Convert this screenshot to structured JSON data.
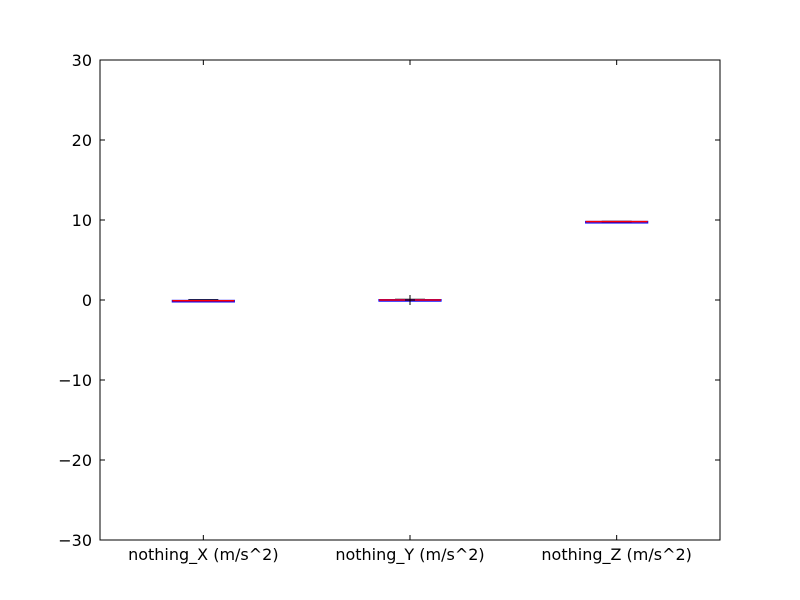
{
  "chart_data": {
    "type": "box",
    "categories": [
      "nothing_X (m/s^2)",
      "nothing_Y (m/s^2)",
      "nothing_Z (m/s^2)"
    ],
    "boxes": [
      {
        "name": "nothing_X (m/s^2)",
        "min": -0.25,
        "q1": -0.18,
        "median": -0.1,
        "q3": -0.05,
        "max": 0.05,
        "outliers": []
      },
      {
        "name": "nothing_Y (m/s^2)",
        "min": -0.1,
        "q1": -0.05,
        "median": 0.0,
        "q3": 0.05,
        "max": 0.1,
        "outliers": [
          0.0
        ]
      },
      {
        "name": "nothing_Z (m/s^2)",
        "min": 9.75,
        "q1": 9.78,
        "median": 9.8,
        "q3": 9.82,
        "max": 9.85,
        "outliers": []
      }
    ],
    "ylim": [
      -30,
      30
    ],
    "yticks": [
      -30,
      -20,
      -10,
      0,
      10,
      20,
      30
    ],
    "ytick_labels": [
      "−30",
      "−20",
      "−10",
      "0",
      "10",
      "20",
      "30"
    ],
    "title": "",
    "xlabel": "",
    "ylabel": "",
    "grid": false,
    "colors": {
      "box": "#0000ff",
      "median": "#ff0000",
      "whisker": "#000000",
      "flier": "#000000"
    }
  }
}
